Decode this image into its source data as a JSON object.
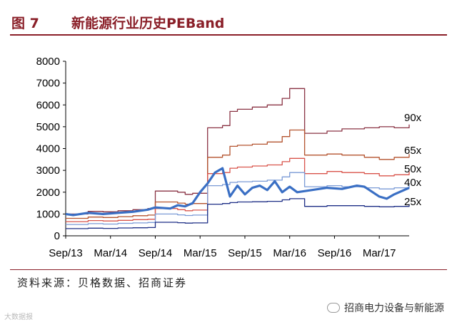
{
  "figure": {
    "number": "图 7",
    "title": "新能源行业历史PEBand"
  },
  "source": "资料来源：贝格数据、招商证券",
  "watermark": {
    "left": "大数据报",
    "right": "招商电力设备与新能源"
  },
  "colors": {
    "price": "#3a6fc4",
    "p90": "#8a3344",
    "p65": "#b4532e",
    "p50": "#d9544b",
    "p40": "#7a9ad6",
    "p25": "#1e2f86",
    "brand": "#8a1f28"
  },
  "chart_data": {
    "type": "line",
    "title": "",
    "xlabel": "",
    "ylabel": "",
    "ylim": [
      0,
      8000
    ],
    "xlim": [
      "2013-09",
      "2017-07"
    ],
    "yticks": [
      0,
      1000,
      2000,
      3000,
      4000,
      5000,
      6000,
      7000,
      8000
    ],
    "xticks": [
      "Sep/13",
      "Mar/14",
      "Sep/14",
      "Mar/15",
      "Sep/15",
      "Mar/16",
      "Sep/16",
      "Mar/17"
    ],
    "grid": false,
    "series": [
      {
        "name": "90x",
        "band": true,
        "x": [
          "2013-09",
          "2013-12",
          "2014-02",
          "2014-04",
          "2014-06",
          "2014-08",
          "2014-09",
          "2014-12",
          "2015-01",
          "2015-02",
          "2015-04",
          "2015-06",
          "2015-07",
          "2015-08",
          "2015-10",
          "2015-12",
          "2016-02",
          "2016-03",
          "2016-05",
          "2016-08",
          "2016-10",
          "2017-01",
          "2017-03",
          "2017-05",
          "2017-07"
        ],
        "values": [
          1000,
          1120,
          1100,
          1150,
          1200,
          1250,
          2050,
          2000,
          1900,
          1950,
          4950,
          5050,
          5700,
          5800,
          5900,
          6000,
          6300,
          6750,
          4700,
          4800,
          4900,
          4950,
          5000,
          4950,
          5100
        ]
      },
      {
        "name": "65x",
        "band": true,
        "x": [
          "2013-09",
          "2013-12",
          "2014-02",
          "2014-04",
          "2014-06",
          "2014-08",
          "2014-09",
          "2014-12",
          "2015-01",
          "2015-02",
          "2015-04",
          "2015-06",
          "2015-07",
          "2015-08",
          "2015-10",
          "2015-12",
          "2016-02",
          "2016-03",
          "2016-05",
          "2016-08",
          "2016-10",
          "2017-01",
          "2017-03",
          "2017-05",
          "2017-07"
        ],
        "values": [
          800,
          860,
          840,
          880,
          920,
          950,
          1550,
          1500,
          1450,
          1480,
          3600,
          3700,
          4100,
          4150,
          4200,
          4300,
          4550,
          4850,
          3700,
          3750,
          3700,
          3600,
          3500,
          3600,
          3750
        ]
      },
      {
        "name": "50x",
        "band": true,
        "x": [
          "2013-09",
          "2013-12",
          "2014-02",
          "2014-04",
          "2014-06",
          "2014-08",
          "2014-09",
          "2014-12",
          "2015-01",
          "2015-02",
          "2015-04",
          "2015-06",
          "2015-07",
          "2015-08",
          "2015-10",
          "2015-12",
          "2016-02",
          "2016-03",
          "2016-05",
          "2016-08",
          "2016-10",
          "2017-01",
          "2017-03",
          "2017-05",
          "2017-07"
        ],
        "values": [
          650,
          700,
          680,
          710,
          740,
          760,
          1250,
          1200,
          1150,
          1180,
          2850,
          2900,
          3100,
          3150,
          3200,
          3250,
          3400,
          3550,
          2850,
          2950,
          2900,
          2850,
          2750,
          2800,
          2950
        ]
      },
      {
        "name": "40x",
        "band": true,
        "x": [
          "2013-09",
          "2013-12",
          "2014-02",
          "2014-04",
          "2014-06",
          "2014-08",
          "2014-09",
          "2014-12",
          "2015-01",
          "2015-02",
          "2015-04",
          "2015-06",
          "2015-07",
          "2015-08",
          "2015-10",
          "2015-12",
          "2016-02",
          "2016-03",
          "2016-05",
          "2016-08",
          "2016-10",
          "2017-01",
          "2017-03",
          "2017-05",
          "2017-07"
        ],
        "values": [
          520,
          560,
          540,
          570,
          590,
          610,
          1000,
          960,
          930,
          950,
          2300,
          2350,
          2450,
          2480,
          2500,
          2550,
          2700,
          2900,
          2250,
          2300,
          2250,
          2200,
          2150,
          2200,
          2350
        ]
      },
      {
        "name": "25x",
        "band": true,
        "x": [
          "2013-09",
          "2013-12",
          "2014-02",
          "2014-04",
          "2014-06",
          "2014-08",
          "2014-09",
          "2014-12",
          "2015-01",
          "2015-02",
          "2015-04",
          "2015-06",
          "2015-07",
          "2015-08",
          "2015-10",
          "2015-12",
          "2016-02",
          "2016-03",
          "2016-05",
          "2016-08",
          "2016-10",
          "2017-01",
          "2017-03",
          "2017-05",
          "2017-07"
        ],
        "values": [
          330,
          350,
          340,
          360,
          370,
          380,
          620,
          600,
          580,
          590,
          1450,
          1480,
          1520,
          1550,
          1560,
          1580,
          1650,
          1700,
          1350,
          1380,
          1380,
          1350,
          1330,
          1350,
          1450
        ]
      },
      {
        "name": "",
        "band": false,
        "x": [
          "2013-09",
          "2013-10",
          "2013-12",
          "2014-02",
          "2014-04",
          "2014-06",
          "2014-08",
          "2014-09",
          "2014-11",
          "2014-12",
          "2015-01",
          "2015-02",
          "2015-03",
          "2015-04",
          "2015-05",
          "2015-06",
          "2015-07",
          "2015-08",
          "2015-09",
          "2015-10",
          "2015-11",
          "2015-12",
          "2016-01",
          "2016-02",
          "2016-03",
          "2016-04",
          "2016-06",
          "2016-08",
          "2016-10",
          "2016-12",
          "2017-01",
          "2017-03",
          "2017-04",
          "2017-05",
          "2017-07"
        ],
        "values": [
          1000,
          950,
          1050,
          1000,
          1050,
          1100,
          1200,
          1300,
          1250,
          1400,
          1350,
          1500,
          2000,
          2400,
          2900,
          3100,
          1800,
          2300,
          1900,
          2200,
          2300,
          2100,
          2500,
          2000,
          2250,
          2000,
          2100,
          2200,
          2150,
          2300,
          2250,
          1800,
          1700,
          1900,
          2200
        ]
      }
    ]
  }
}
